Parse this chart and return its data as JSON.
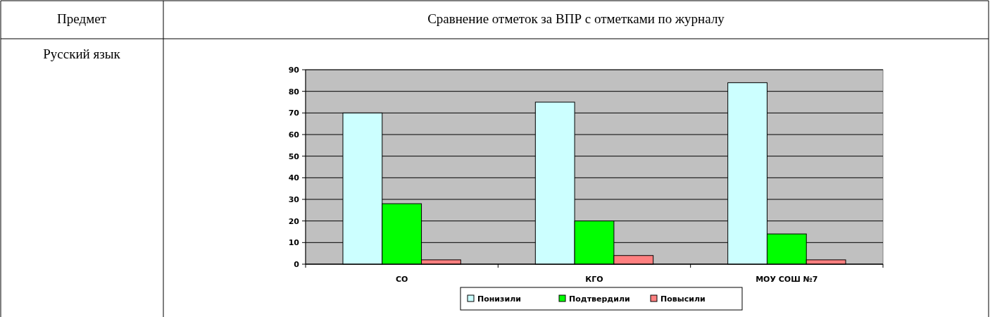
{
  "chart_data": {
    "type": "bar",
    "title": "Сравнение отметок за ВПР с отметками по журналу",
    "annotations": [
      "Предмет",
      "Русский язык"
    ],
    "categories": [
      "СО",
      "КГО",
      "МОУ СОШ №7"
    ],
    "series": [
      {
        "name": "Понизили",
        "color": "#ccffff",
        "values": [
          70,
          75,
          84
        ]
      },
      {
        "name": "Подтвердили",
        "color": "#00ff00",
        "values": [
          28,
          20,
          14
        ]
      },
      {
        "name": "Повысили",
        "color": "#ff8080",
        "values": [
          2,
          4,
          2
        ]
      }
    ],
    "ylim": [
      0,
      90
    ],
    "yticks": [
      0,
      10,
      20,
      30,
      40,
      50,
      60,
      70,
      80,
      90
    ],
    "grid": "y",
    "legend": "bottom"
  }
}
